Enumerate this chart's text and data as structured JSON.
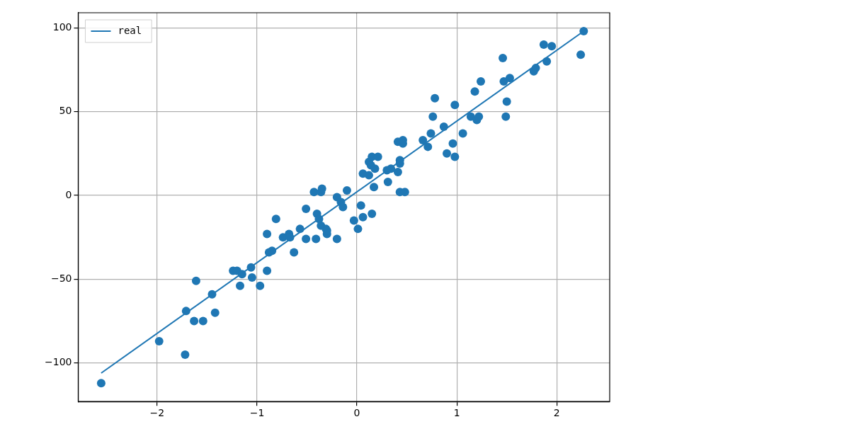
{
  "chart_data": {
    "type": "scatter",
    "xlim": [
      -2.79,
      2.53
    ],
    "ylim": [
      -123,
      109
    ],
    "xticks": [
      -2,
      -1,
      0,
      1,
      2
    ],
    "yticks": [
      -100,
      -50,
      0,
      50,
      100
    ],
    "grid": true,
    "legend": "top left",
    "marker": "circle",
    "series": [
      {
        "type": "scatter",
        "color": "#1f77b4",
        "x": [
          -2.56,
          -1.98,
          -1.72,
          -1.71,
          -1.63,
          -1.61,
          -1.54,
          -1.45,
          -1.42,
          -1.24,
          -1.2,
          -1.17,
          -1.15,
          -1.06,
          -1.05,
          -0.97,
          -0.9,
          -0.9,
          -0.88,
          -0.85,
          -0.81,
          -0.74,
          -0.68,
          -0.67,
          -0.63,
          -0.57,
          -0.51,
          -0.51,
          -0.43,
          -0.41,
          -0.4,
          -0.38,
          -0.36,
          -0.35,
          -0.36,
          -0.31,
          -0.3,
          -0.3,
          -0.2,
          -0.2,
          -0.16,
          -0.14,
          -0.1,
          -0.03,
          0.01,
          0.04,
          0.06,
          0.06,
          0.12,
          0.12,
          0.14,
          0.15,
          0.15,
          0.17,
          0.18,
          0.21,
          0.3,
          0.31,
          0.34,
          0.41,
          0.41,
          0.43,
          0.43,
          0.43,
          0.48,
          0.46,
          0.46,
          0.66,
          0.71,
          0.74,
          0.76,
          0.78,
          0.87,
          0.9,
          0.96,
          0.98,
          0.98,
          1.06,
          1.14,
          1.18,
          1.2,
          1.22,
          1.24,
          1.46,
          1.47,
          1.49,
          1.5,
          1.53,
          1.77,
          1.79,
          1.87,
          1.9,
          1.95,
          2.24,
          2.27
        ],
        "values": [
          -112,
          -87,
          -95,
          -69,
          -75,
          -51,
          -75,
          -59,
          -70,
          -45,
          -45,
          -54,
          -47,
          -43,
          -49,
          -54,
          -23,
          -45,
          -34,
          -33,
          -14,
          -25,
          -23,
          -25,
          -34,
          -20,
          -26,
          -8,
          2,
          -26,
          -11,
          -14,
          2,
          4,
          -18,
          -20,
          -23,
          -21,
          -1,
          -26,
          -4,
          -7,
          3,
          -15,
          -20,
          -6,
          -13,
          13,
          12,
          20,
          18,
          23,
          -11,
          5,
          16,
          23,
          15,
          8,
          16,
          32,
          14,
          21,
          19,
          2,
          2,
          31,
          33,
          33,
          29,
          37,
          47,
          58,
          41,
          25,
          31,
          54,
          23,
          37,
          47,
          62,
          45,
          47,
          68,
          82,
          68,
          47,
          56,
          70,
          74,
          76,
          90,
          80,
          89,
          84,
          98
        ]
      },
      {
        "type": "line",
        "name": "real",
        "color": "#1f77b4",
        "x": [
          -2.56,
          2.27
        ],
        "values": [
          -106,
          98
        ],
        "marker": "none",
        "line_style": "solid"
      }
    ]
  }
}
